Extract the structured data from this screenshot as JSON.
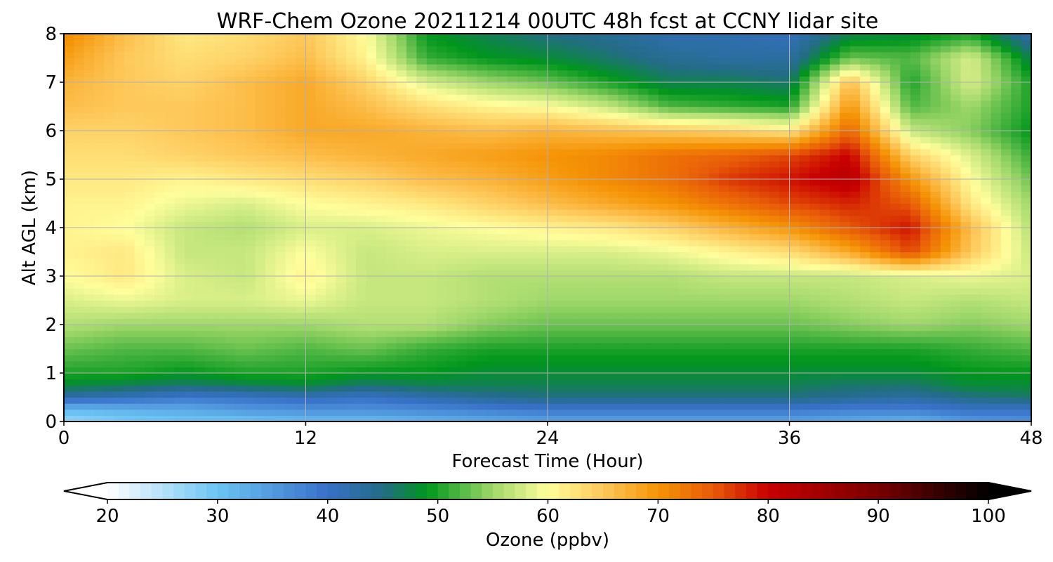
{
  "chart_data": {
    "type": "heatmap",
    "title": "WRF-Chem Ozone  20211214 00UTC 48h fcst at CCNY lidar site",
    "xlabel": "Forecast Time (Hour)",
    "ylabel": "Alt AGL (km)",
    "xlim": [
      0,
      48
    ],
    "ylim": [
      0,
      8
    ],
    "xticks": [
      0,
      12,
      24,
      36,
      48
    ],
    "yticks": [
      0,
      1,
      2,
      3,
      4,
      5,
      6,
      7,
      8
    ],
    "grid": true,
    "x": [
      0,
      3,
      6,
      9,
      12,
      15,
      18,
      21,
      24,
      27,
      30,
      33,
      36,
      39,
      42,
      45,
      48
    ],
    "y": [
      0,
      0.25,
      0.5,
      0.75,
      1,
      1.5,
      2,
      2.5,
      3,
      3.5,
      4,
      4.5,
      5,
      5.5,
      6,
      6.5,
      7,
      7.5,
      8
    ],
    "z": [
      [
        27,
        29,
        30,
        30,
        31,
        31,
        32,
        33,
        34,
        34,
        34,
        34,
        34,
        33,
        32,
        35,
        36
      ],
      [
        31,
        32,
        33,
        35,
        36,
        36,
        37,
        38,
        39,
        39,
        39,
        39,
        39,
        38,
        38,
        40,
        40
      ],
      [
        42,
        41,
        39,
        40,
        41,
        40,
        42,
        44,
        45,
        45,
        45,
        45,
        45,
        44,
        43,
        45,
        46
      ],
      [
        48,
        47,
        46,
        47,
        48,
        46,
        47,
        47,
        47,
        47,
        47,
        47,
        47,
        46,
        46,
        48,
        48
      ],
      [
        50,
        50,
        49,
        50,
        50,
        49,
        49,
        48,
        48,
        48,
        48,
        48,
        48,
        48,
        48,
        49,
        49
      ],
      [
        53,
        52,
        52,
        53,
        52,
        53,
        51,
        50,
        50,
        50,
        50,
        50,
        50,
        50,
        50,
        51,
        52
      ],
      [
        56,
        55,
        55,
        55,
        55,
        56,
        56,
        54,
        53,
        53,
        53,
        53,
        53,
        54,
        55,
        54,
        55
      ],
      [
        58,
        59,
        58,
        58,
        59,
        57,
        57,
        56,
        55,
        55,
        55,
        55,
        55,
        56,
        57,
        56,
        57
      ],
      [
        60,
        62,
        58,
        57,
        61,
        57,
        57,
        56,
        56,
        56,
        56,
        57,
        57,
        57,
        58,
        59,
        58
      ],
      [
        61,
        62,
        57,
        57,
        60,
        57,
        58,
        58,
        58,
        58,
        59,
        61,
        63,
        68,
        76,
        65,
        57
      ],
      [
        61,
        60,
        57,
        56,
        58,
        58,
        59,
        60,
        61,
        62,
        64,
        67,
        70,
        75,
        79,
        66,
        56
      ],
      [
        61,
        61,
        59,
        58,
        60,
        61,
        62,
        64,
        66,
        68,
        70,
        73,
        76,
        78,
        75,
        62,
        55
      ],
      [
        62,
        62,
        61,
        62,
        63,
        64,
        66,
        67,
        69,
        71,
        73,
        77,
        79,
        82,
        70,
        60,
        53
      ],
      [
        63,
        63,
        64,
        65,
        66,
        67,
        68,
        69,
        70,
        71,
        73,
        74,
        76,
        80,
        64,
        58,
        51
      ],
      [
        64,
        64,
        65,
        66,
        68,
        68,
        67,
        66,
        67,
        66,
        65,
        64,
        62,
        74,
        57,
        54,
        49
      ],
      [
        66,
        65,
        65,
        66,
        68,
        66,
        63,
        61,
        60,
        57,
        52,
        51,
        50,
        70,
        52,
        55,
        50
      ],
      [
        67,
        65,
        64,
        66,
        68,
        64,
        58,
        55,
        53,
        50,
        47,
        47,
        46,
        66,
        50,
        58,
        50
      ],
      [
        69,
        65,
        63,
        64,
        66,
        61,
        51,
        49,
        48,
        46,
        44,
        43,
        43,
        53,
        52,
        58,
        47
      ],
      [
        71,
        66,
        62,
        63,
        65,
        60,
        49,
        47,
        45,
        44,
        42,
        42,
        41,
        47,
        48,
        50,
        42
      ]
    ],
    "colorbar": {
      "label": "Ozone  (ppbv)",
      "min": 20,
      "max": 100,
      "ticks": [
        20,
        30,
        40,
        50,
        60,
        70,
        80,
        90,
        100
      ],
      "extend": "both",
      "stops": [
        {
          "v": 20,
          "c": "#ffffff"
        },
        {
          "v": 30,
          "c": "#6cc4f4"
        },
        {
          "v": 40,
          "c": "#3870c8"
        },
        {
          "v": 45,
          "c": "#236c86"
        },
        {
          "v": 49,
          "c": "#00961c"
        },
        {
          "v": 55,
          "c": "#a0d86a"
        },
        {
          "v": 60,
          "c": "#fffe9c"
        },
        {
          "v": 65,
          "c": "#fec85a"
        },
        {
          "v": 70,
          "c": "#f59406"
        },
        {
          "v": 75,
          "c": "#e85a08"
        },
        {
          "v": 80,
          "c": "#c80000"
        },
        {
          "v": 90,
          "c": "#780000"
        },
        {
          "v": 100,
          "c": "#000000"
        }
      ]
    }
  }
}
